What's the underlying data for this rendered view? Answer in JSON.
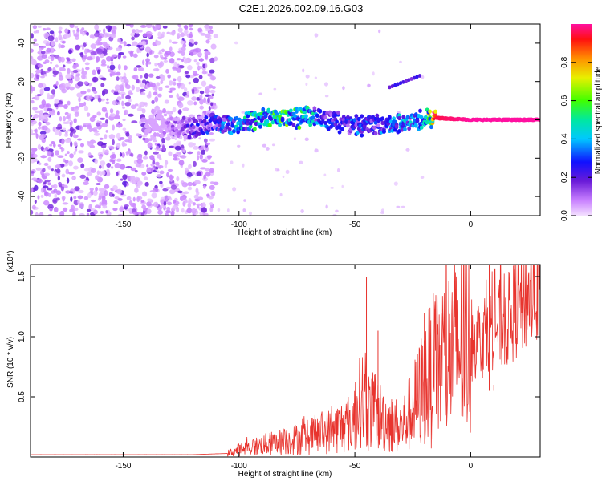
{
  "title": "C2E1.2026.002.09.16.G03",
  "chart_data": [
    {
      "type": "heatmap",
      "title": "C2E1.2026.002.09.16.G03",
      "xlabel": "Height of straight line (km)",
      "ylabel": "Frequency (Hz)",
      "xlim": [
        -190,
        30
      ],
      "ylim": [
        -50,
        50
      ],
      "x_ticks": [
        -150,
        -100,
        -50,
        0
      ],
      "y_ticks": [
        -40,
        -20,
        0,
        20,
        40
      ],
      "x_tick_labels": [
        "-150",
        "-100",
        "-50",
        "0"
      ],
      "y_tick_labels": [
        "-40",
        "-20",
        "0",
        "20",
        "40"
      ],
      "colorbar": {
        "label": "Normalized spectral amplitude",
        "range": [
          0,
          1
        ],
        "ticks": [
          0.0,
          0.2,
          0.4,
          0.6,
          0.8
        ],
        "tick_labels": [
          "0.0",
          "0.2",
          "0.4",
          "0.6",
          "0.8"
        ]
      },
      "ridge": {
        "description_points_x": [
          -135,
          -120,
          -105,
          -90,
          -80,
          -70,
          -60,
          -50,
          -40,
          -30,
          -20,
          -15,
          0,
          10,
          20,
          30
        ],
        "frequency_hz": [
          -3,
          -4,
          -2,
          0,
          1,
          2,
          0,
          -3,
          -3,
          -2,
          0,
          1,
          0,
          0,
          0,
          0
        ],
        "amplitude": [
          0.05,
          0.2,
          0.35,
          0.5,
          0.55,
          0.45,
          0.3,
          0.3,
          0.3,
          0.4,
          0.45,
          0.95,
          1.0,
          1.0,
          1.0,
          1.0
        ]
      },
      "noise_region_x": [
        -190,
        -115
      ],
      "secondary_track": {
        "x": [
          -35,
          -22
        ],
        "frequency_hz": [
          17,
          23
        ]
      }
    },
    {
      "type": "line",
      "xlabel": "Height of straight line (km)",
      "ylabel": "SNR (10 * v/v)",
      "y_multiplier": "(x10⁴)",
      "xlim": [
        -190,
        30
      ],
      "ylim": [
        0,
        1.6
      ],
      "x_ticks": [
        -150,
        -100,
        -50,
        0
      ],
      "y_ticks": [
        0.5,
        1.0,
        1.5
      ],
      "x_tick_labels": [
        "-150",
        "-100",
        "-50",
        "0"
      ],
      "y_tick_labels": [
        "0.5",
        "1.0",
        "1.5"
      ],
      "series": [
        {
          "name": "SNR",
          "color": "#e8342e",
          "envelope_x": [
            -190,
            -120,
            -105,
            -100,
            -90,
            -80,
            -70,
            -60,
            -55,
            -50,
            -47,
            -45,
            -40,
            -35,
            -30,
            -25,
            -20,
            -15,
            -10,
            -5,
            0,
            5,
            8,
            10,
            15,
            20,
            25,
            30
          ],
          "envelope_mean": [
            0.02,
            0.02,
            0.03,
            0.06,
            0.1,
            0.13,
            0.17,
            0.22,
            0.26,
            0.32,
            0.5,
            0.4,
            0.35,
            0.28,
            0.25,
            0.4,
            0.6,
            0.75,
            0.85,
            0.9,
            0.95,
            1.0,
            1.1,
            1.1,
            1.1,
            1.25,
            1.35,
            1.45
          ],
          "spikes": [
            {
              "x": -45,
              "y": 1.5
            },
            {
              "x": -40,
              "y": 1.05
            },
            {
              "x": -20,
              "y": 1.2
            },
            {
              "x": 8,
              "y": 1.6
            },
            {
              "x": 10,
              "y": 0.6
            }
          ]
        }
      ]
    }
  ]
}
